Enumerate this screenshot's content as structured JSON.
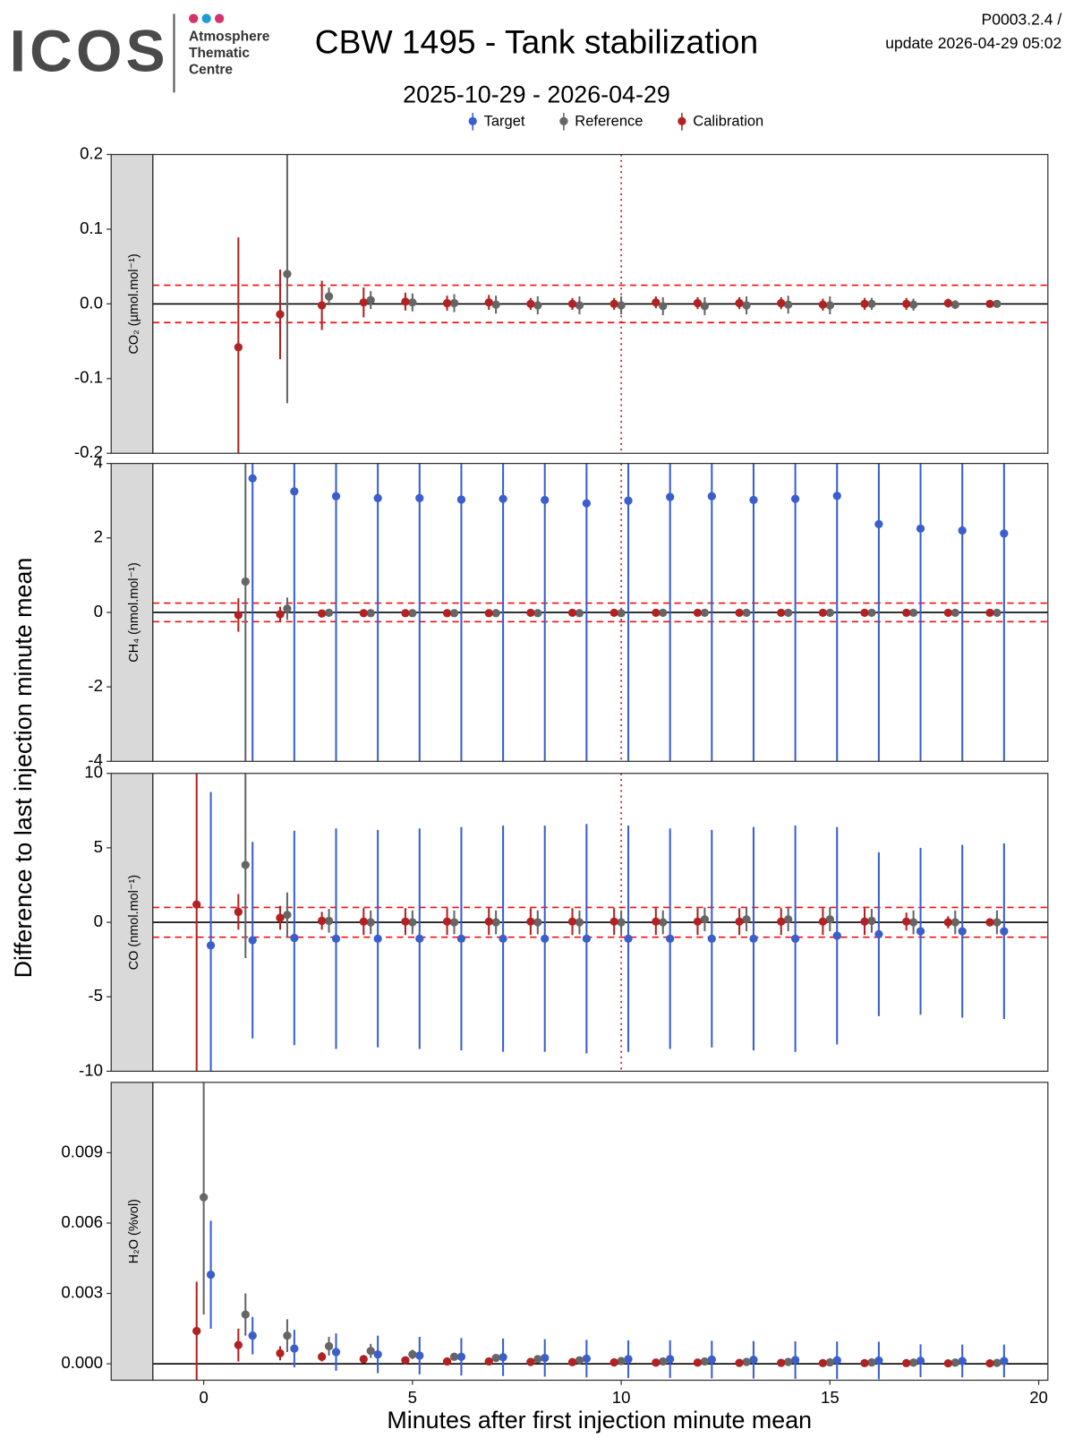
{
  "header": {
    "logo": "ICOS",
    "logo_lines": [
      "Atmosphere",
      "Thematic",
      "Centre"
    ],
    "title": "CBW 1495 - Tank stabilization",
    "subtitle": "2025-10-29 - 2026-04-29",
    "version": "P0003.2.4 /",
    "update": "update  2026-04-29 05:02"
  },
  "y_label": "Difference to last injection minute mean",
  "x_label": "Minutes after first injection minute mean",
  "chart_data": [
    {
      "type": "scatter",
      "strip": "CO₂ (µmol.mol⁻¹)",
      "xlim": [
        -1.22,
        20.22
      ],
      "ylim": [
        -0.2,
        0.2
      ],
      "yticks": [
        0.2,
        0.1,
        {
          "value": 0,
          "label": "0.0"
        },
        -0.1,
        -0.2
      ],
      "hline": 0,
      "tolerance": [
        -0.025,
        0.025
      ],
      "vline": 10,
      "x": [
        0,
        1,
        2,
        3,
        4,
        5,
        6,
        7,
        8,
        9,
        10,
        11,
        12,
        13,
        14,
        15,
        16,
        17,
        18,
        19
      ],
      "series": [
        {
          "name": "Reference",
          "color": "#666666",
          "values": [
            null,
            null,
            0.04,
            0.01,
            0.005,
            0.002,
            0.001,
            -0.001,
            -0.002,
            -0.002,
            -0.002,
            -0.003,
            -0.003,
            -0.002,
            -0.001,
            -0.002,
            0.0,
            -0.001,
            -0.001,
            0.0
          ],
          "errors": [
            null,
            null,
            0.173,
            0.012,
            0.012,
            0.012,
            0.012,
            0.012,
            0.012,
            0.012,
            0.012,
            0.012,
            0.012,
            0.012,
            0.012,
            0.012,
            0.008,
            0.008,
            0.006,
            0.004
          ]
        },
        {
          "name": "Calibration",
          "color": "#B22222",
          "values": [
            null,
            -0.058,
            -0.014,
            -0.002,
            0.002,
            0.003,
            0.001,
            0.002,
            0.0,
            0.0,
            0.0,
            0.002,
            0.001,
            0.001,
            0.001,
            -0.001,
            0.0,
            0.0,
            0.001,
            0.0
          ],
          "errors": [
            null,
            0.147,
            0.06,
            0.033,
            0.02,
            0.012,
            0.01,
            0.01,
            0.008,
            0.008,
            0.008,
            0.008,
            0.008,
            0.008,
            0.008,
            0.008,
            0.008,
            0.008,
            0.006,
            0.004
          ]
        }
      ]
    },
    {
      "type": "scatter",
      "strip": "CH₄ (nmol.mol⁻¹)",
      "xlim": [
        -1.22,
        20.22
      ],
      "ylim": [
        -4,
        4
      ],
      "yticks": [
        4,
        2,
        0,
        -2,
        -4
      ],
      "hline": 0,
      "tolerance": [
        -0.25,
        0.25
      ],
      "vline": 10,
      "x": [
        0,
        1,
        2,
        3,
        4,
        5,
        6,
        7,
        8,
        9,
        10,
        11,
        12,
        13,
        14,
        15,
        16,
        17,
        18,
        19
      ],
      "series": [
        {
          "name": "Target",
          "color": "#3A5FCD",
          "values": [
            null,
            3.6,
            3.25,
            3.12,
            3.07,
            3.07,
            3.03,
            3.05,
            3.02,
            2.93,
            3.0,
            3.1,
            3.12,
            3.02,
            3.05,
            3.13,
            2.37,
            2.25,
            2.2,
            2.12
          ],
          "errors": [
            null,
            8,
            8,
            8,
            8,
            8,
            8,
            8,
            8,
            8,
            8,
            8,
            8,
            8,
            8,
            8,
            8,
            8,
            8,
            8
          ]
        },
        {
          "name": "Reference",
          "color": "#666666",
          "values": [
            null,
            0.83,
            0.1,
            -0.01,
            -0.02,
            -0.02,
            -0.02,
            -0.02,
            -0.02,
            -0.02,
            -0.02,
            -0.01,
            -0.01,
            -0.01,
            -0.01,
            -0.01,
            -0.01,
            -0.01,
            -0.01,
            -0.01
          ],
          "errors": [
            null,
            6,
            0.3,
            0.06,
            0.05,
            0.05,
            0.05,
            0.05,
            0.05,
            0.05,
            0.05,
            0.05,
            0.05,
            0.05,
            0.05,
            0.05,
            0.05,
            0.05,
            0.05,
            0.05
          ]
        },
        {
          "name": "Calibration",
          "color": "#B22222",
          "values": [
            null,
            -0.07,
            -0.05,
            -0.03,
            -0.02,
            -0.02,
            -0.02,
            -0.02,
            -0.01,
            -0.01,
            -0.01,
            -0.01,
            -0.01,
            -0.01,
            -0.01,
            -0.01,
            -0.01,
            -0.01,
            -0.01,
            -0.01
          ],
          "errors": [
            null,
            0.45,
            0.2,
            0.05,
            0.05,
            0.05,
            0.05,
            0.05,
            0.05,
            0.05,
            0.05,
            0.05,
            0.05,
            0.05,
            0.05,
            0.05,
            0.05,
            0.05,
            0.05,
            0.05
          ]
        }
      ]
    },
    {
      "type": "scatter",
      "strip": "CO (nmol.mol⁻¹)",
      "xlim": [
        -1.22,
        20.22
      ],
      "ylim": [
        -10,
        10
      ],
      "yticks": [
        10,
        5,
        0,
        -5,
        -10
      ],
      "hline": 0,
      "tolerance": [
        -1,
        1
      ],
      "vline": 10,
      "x": [
        0,
        1,
        2,
        3,
        4,
        5,
        6,
        7,
        8,
        9,
        10,
        11,
        12,
        13,
        14,
        15,
        16,
        17,
        18,
        19
      ],
      "series": [
        {
          "name": "Target",
          "color": "#3A5FCD",
          "values": [
            -1.55,
            -1.2,
            -1.05,
            -1.1,
            -1.1,
            -1.1,
            -1.1,
            -1.1,
            -1.1,
            -1.1,
            -1.1,
            -1.1,
            -1.1,
            -1.1,
            -1.1,
            -0.9,
            -0.8,
            -0.6,
            -0.6,
            -0.6
          ],
          "errors": [
            10.3,
            6.6,
            7.2,
            7.4,
            7.3,
            7.4,
            7.5,
            7.6,
            7.6,
            7.7,
            7.6,
            7.4,
            7.3,
            7.5,
            7.6,
            7.3,
            5.5,
            5.6,
            5.8,
            5.9
          ]
        },
        {
          "name": "Reference",
          "color": "#666666",
          "values": [
            null,
            3.85,
            0.5,
            0.1,
            0.0,
            0.0,
            0.0,
            0.0,
            0.0,
            0.0,
            0.0,
            0.0,
            0.2,
            0.2,
            0.2,
            0.2,
            0.1,
            0.0,
            0.0,
            0.0
          ],
          "errors": [
            null,
            6.25,
            1.5,
            0.8,
            0.8,
            0.8,
            0.8,
            0.8,
            0.8,
            0.8,
            0.8,
            0.8,
            0.8,
            0.8,
            0.8,
            0.8,
            0.8,
            0.8,
            0.8,
            0.8
          ]
        },
        {
          "name": "Calibration",
          "color": "#B22222",
          "values": [
            1.2,
            0.7,
            0.3,
            0.1,
            0.05,
            0.05,
            0.05,
            0.05,
            0.05,
            0.05,
            0.05,
            0.05,
            0.05,
            0.05,
            0.05,
            0.05,
            0.05,
            0.05,
            0.0,
            0.0
          ],
          "errors": [
            12,
            1.2,
            0.8,
            0.6,
            0.9,
            0.9,
            0.9,
            0.9,
            0.9,
            0.9,
            0.9,
            0.9,
            0.9,
            0.9,
            0.9,
            0.9,
            0.9,
            0.6,
            0.4,
            0.2
          ]
        }
      ]
    },
    {
      "type": "scatter",
      "strip": "H₂O (%vol)",
      "xlim": [
        -1.22,
        20.22
      ],
      "ylim": [
        -0.0007,
        0.012
      ],
      "yticks": [
        {
          "value": 0.009,
          "label": "0.009"
        },
        {
          "value": 0.006,
          "label": "0.006"
        },
        {
          "value": 0.003,
          "label": "0.003"
        },
        {
          "value": 0,
          "label": "0.000"
        }
      ],
      "hline": 0,
      "xticks": [
        0,
        5,
        10,
        15,
        20
      ],
      "x": [
        0,
        1,
        2,
        3,
        4,
        5,
        6,
        7,
        8,
        9,
        10,
        11,
        12,
        13,
        14,
        15,
        16,
        17,
        18,
        19
      ],
      "series": [
        {
          "name": "Target",
          "color": "#3A5FCD",
          "values": [
            0.0038,
            0.0012,
            0.00065,
            0.0005,
            0.0004,
            0.00035,
            0.0003,
            0.00028,
            0.00025,
            0.00022,
            0.0002,
            0.0002,
            0.00018,
            0.00017,
            0.00016,
            0.00015,
            0.00014,
            0.00013,
            0.00012,
            0.00012
          ],
          "errors": [
            0.0023,
            0.0008,
            0.0008,
            0.0008,
            0.0008,
            0.0008,
            0.0008,
            0.0008,
            0.0008,
            0.0008,
            0.0008,
            0.0008,
            0.0008,
            0.0008,
            0.0008,
            0.0008,
            0.0008,
            0.0007,
            0.0007,
            0.0007
          ]
        },
        {
          "name": "Reference",
          "color": "#666666",
          "values": [
            0.0071,
            0.0021,
            0.0012,
            0.00075,
            0.00055,
            0.0004,
            0.0003,
            0.00025,
            0.0002,
            0.00015,
            0.00012,
            0.0001,
            0.0001,
            8e-05,
            8e-05,
            6e-05,
            6e-05,
            5e-05,
            5e-05,
            4e-05
          ],
          "errors": [
            0.005,
            0.0009,
            0.0007,
            0.0004,
            0.0003,
            0.0002,
            0.0001,
            0.0001,
            0.0001,
            0.0001,
            0.0001,
            0.0001,
            0.0001,
            0.0001,
            0.0001,
            0.0001,
            0.0001,
            0.0001,
            0.0001,
            0.0001
          ]
        },
        {
          "name": "Calibration",
          "color": "#B22222",
          "values": [
            0.0014,
            0.0008,
            0.00045,
            0.0003,
            0.0002,
            0.00015,
            0.0001,
            0.0001,
            8e-05,
            7e-05,
            6e-05,
            5e-05,
            5e-05,
            4e-05,
            4e-05,
            3e-05,
            3e-05,
            3e-05,
            2e-05,
            2e-05
          ],
          "errors": [
            0.0021,
            0.0007,
            0.0003,
            0.0002,
            0.0001,
            0.0001,
            0.0001,
            0.0001,
            0.0001,
            0.0001,
            0.0001,
            0.0001,
            0.0001,
            0.0001,
            0.0001,
            0.0001,
            0.0001,
            0.0001,
            0.0001,
            0.0001
          ]
        }
      ]
    }
  ]
}
